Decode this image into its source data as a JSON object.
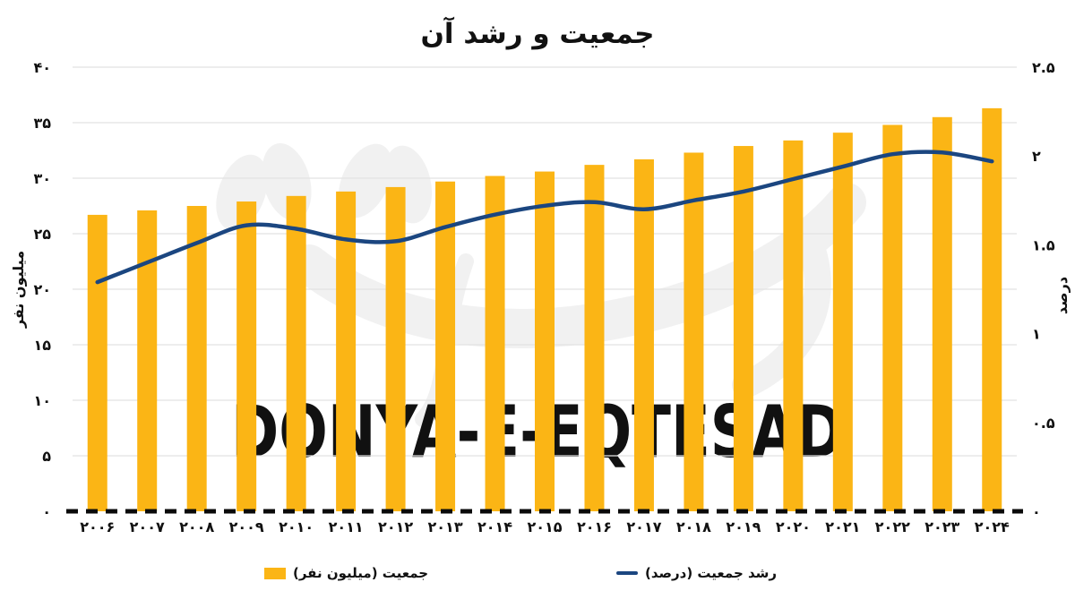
{
  "title": "جمعیت و رشد آن",
  "watermark": {
    "text": "DONYA-E-EQTESAD"
  },
  "colors": {
    "bar": "#FBB515",
    "line": "#1B4680",
    "grid": "#E2E2E2",
    "zero_axis": "#0A0A0A",
    "watermark_text": "#E2E2E2",
    "watermark_shape": "#F1F1F1",
    "text": "#111111"
  },
  "legend": [
    {
      "label": "جمعیت (میلیون نفر)",
      "swatch": "bar",
      "color": "#FBB515"
    },
    {
      "label": "رشد جمعیت (درصد)",
      "swatch": "line",
      "color": "#1B4680"
    }
  ],
  "chart_data": {
    "type": "bar",
    "title": "جمعیت و رشد آن",
    "categories": [
      "۲۰۰۶",
      "۲۰۰۷",
      "۲۰۰۸",
      "۲۰۰۹",
      "۲۰۱۰",
      "۲۰۱۱",
      "۲۰۱۲",
      "۲۰۱۳",
      "۲۰۱۴",
      "۲۰۱۵",
      "۲۰۱۶",
      "۲۰۱۷",
      "۲۰۱۸",
      "۲۰۱۹",
      "۲۰۲۰",
      "۲۰۲۱",
      "۲۰۲۲",
      "۲۰۲۳",
      "۲۰۲۴"
    ],
    "categories_en": [
      2006,
      2007,
      2008,
      2009,
      2010,
      2011,
      2012,
      2013,
      2014,
      2015,
      2016,
      2017,
      2018,
      2019,
      2020,
      2021,
      2022,
      2023,
      2024
    ],
    "series": [
      {
        "name": "جمعیت (میلیون نفر)",
        "type": "bar",
        "axis": "left",
        "color": "#FBB515",
        "values": [
          26.7,
          27.1,
          27.5,
          27.9,
          28.4,
          28.8,
          29.2,
          29.7,
          30.2,
          30.6,
          31.2,
          31.7,
          32.3,
          32.9,
          33.4,
          34.1,
          34.8,
          35.5,
          36.3
        ]
      },
      {
        "name": "رشد جمعیت (درصد)",
        "type": "line",
        "axis": "right",
        "color": "#1B4680",
        "values": [
          1.29,
          1.4,
          1.51,
          1.61,
          1.59,
          1.53,
          1.52,
          1.6,
          1.67,
          1.72,
          1.74,
          1.7,
          1.75,
          1.8,
          1.87,
          1.94,
          2.01,
          2.02,
          1.97
        ]
      }
    ],
    "left_axis": {
      "label": "میلیون نفر",
      "range": [
        0,
        40
      ],
      "ticks": [
        "۰",
        "۵",
        "۱۰",
        "۱۵",
        "۲۰",
        "۲۵",
        "۳۰",
        "۳۵",
        "۴۰"
      ],
      "tick_values": [
        0,
        5,
        10,
        15,
        20,
        25,
        30,
        35,
        40
      ]
    },
    "right_axis": {
      "label": "درصد",
      "range": [
        0,
        2.5
      ],
      "ticks": [
        "۰",
        "۰.۵",
        "۱",
        "۱.۵",
        "۲",
        "۲.۵"
      ],
      "tick_values": [
        0,
        0.5,
        1,
        1.5,
        2,
        2.5
      ]
    },
    "grid": true,
    "legend_position": "bottom"
  }
}
